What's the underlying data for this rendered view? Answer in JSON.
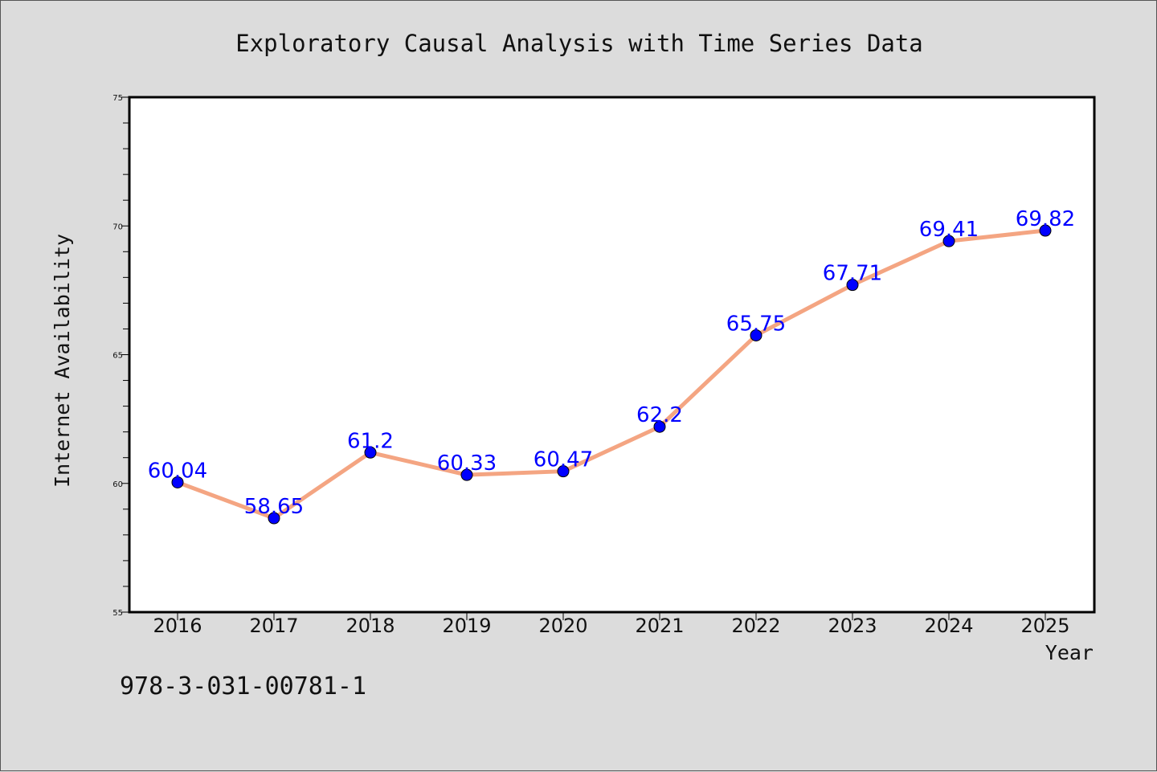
{
  "chart_data": {
    "type": "line",
    "title": "Exploratory Causal Analysis with Time Series Data",
    "xlabel": "Year",
    "ylabel": "Internet Availability",
    "categories": [
      "2016",
      "2017",
      "2018",
      "2019",
      "2020",
      "2021",
      "2022",
      "2023",
      "2024",
      "2025"
    ],
    "series": [
      {
        "values": [
          60.04,
          58.65,
          61.2,
          60.33,
          60.47,
          62.2,
          65.75,
          67.71,
          69.41,
          69.82
        ],
        "data_labels": [
          "60.04",
          "58.65",
          "61.2",
          "60.33",
          "60.47",
          "62.2",
          "65.75",
          "67.71",
          "69.41",
          "69.82"
        ],
        "line_color": "#f4a582",
        "marker_color": "#0000ff"
      }
    ],
    "ylim": [
      55,
      75
    ],
    "yticks": [
      55,
      60,
      65,
      70,
      75
    ],
    "ytick_labels": [
      "55",
      "60",
      "65",
      "70",
      "75"
    ],
    "grid": false,
    "legend": "none"
  },
  "footnote": "978-3-031-00781-1",
  "colors": {
    "background": "#dcdcdc",
    "plot_area": "#ffffff",
    "line": "#f4a582",
    "marker": "#0000ff",
    "data_label": "#0000ff"
  }
}
